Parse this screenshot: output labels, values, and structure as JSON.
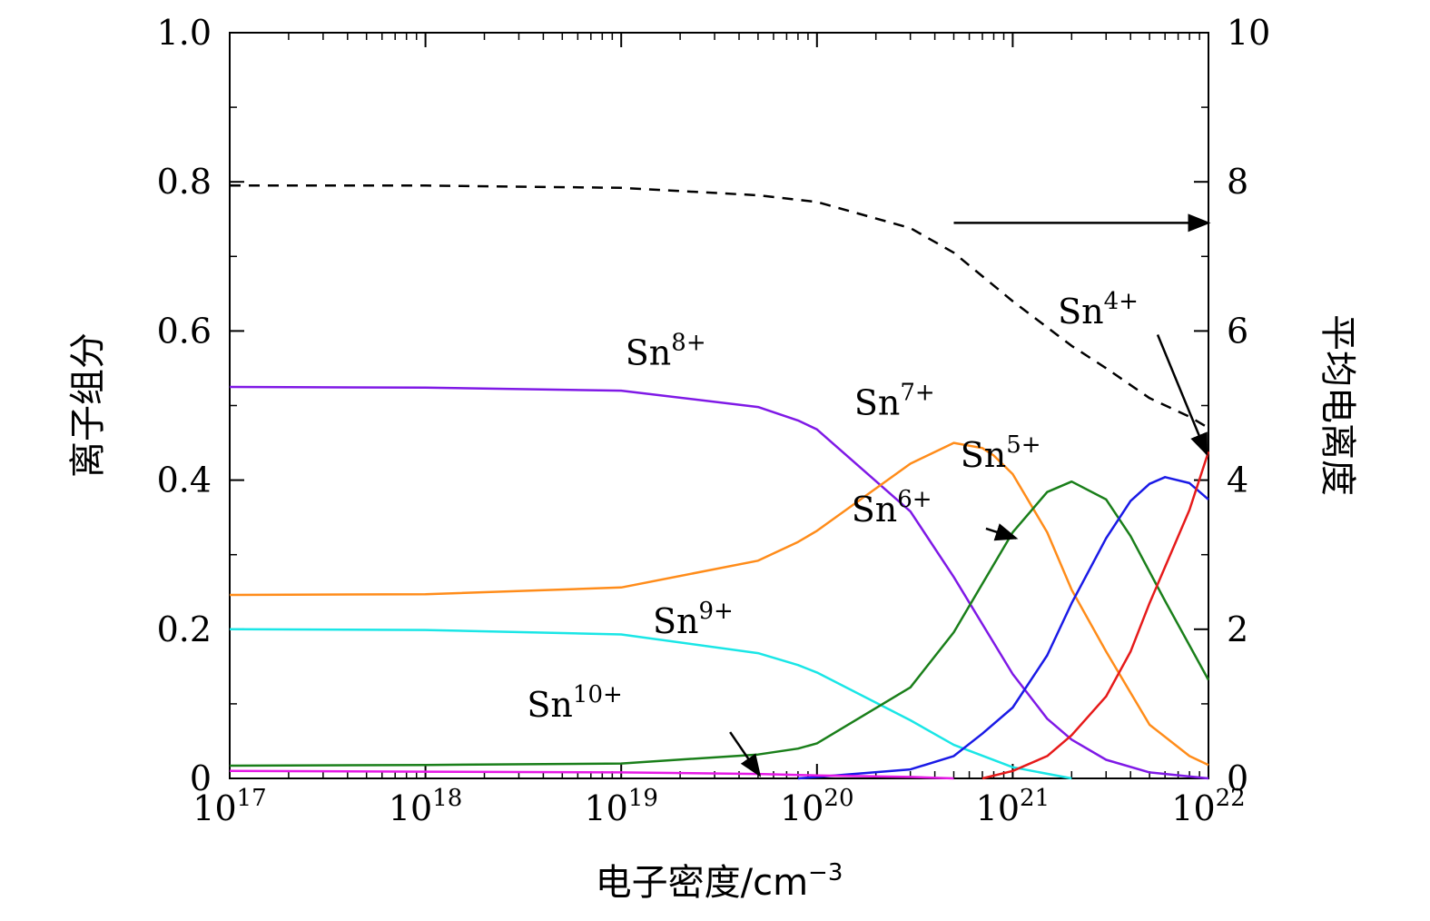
{
  "chart_data": {
    "type": "line",
    "title": "",
    "xlabel": "电子密度/cm",
    "xlabel_exponent": "−3",
    "ylabel_left": "离子组分",
    "ylabel_right": "平均电离度",
    "x_scale": "log",
    "xlim": [
      1e+17,
      1e+22
    ],
    "ylim_left": [
      0,
      1.0
    ],
    "ylim_right": [
      0,
      10
    ],
    "grid": false,
    "legend": "none (inline labels)",
    "x_ticks": [
      {
        "base": "10",
        "exp": "17"
      },
      {
        "base": "10",
        "exp": "18"
      },
      {
        "base": "10",
        "exp": "19"
      },
      {
        "base": "10",
        "exp": "20"
      },
      {
        "base": "10",
        "exp": "21"
      },
      {
        "base": "10",
        "exp": "22"
      }
    ],
    "y_ticks_left": [
      "0",
      "0.2",
      "0.4",
      "0.6",
      "0.8",
      "1.0"
    ],
    "y_ticks_right": [
      "0",
      "2",
      "4",
      "6",
      "8",
      "10"
    ],
    "series": [
      {
        "label_base": "Sn",
        "label_sup": "8+",
        "color": "#7f19e6",
        "axis": "left",
        "x": [
          1e+17,
          1e+18,
          1e+19,
          5e+19,
          8e+19,
          1e+20,
          3e+20,
          5e+20,
          1e+21,
          1.5e+21,
          2e+21,
          3e+21,
          5e+21,
          1e+22
        ],
        "y": [
          0.525,
          0.524,
          0.52,
          0.498,
          0.48,
          0.468,
          0.358,
          0.27,
          0.14,
          0.08,
          0.052,
          0.025,
          0.008,
          0.0
        ]
      },
      {
        "label_base": "Sn",
        "label_sup": "7+",
        "color": "#ff8c1a",
        "axis": "left",
        "x": [
          1e+17,
          1e+18,
          1e+19,
          5e+19,
          8e+19,
          1e+20,
          3e+20,
          5e+20,
          7e+20,
          8e+20,
          1e+21,
          1.5e+21,
          2e+21,
          3e+21,
          5e+21,
          8e+21,
          1e+22
        ],
        "y": [
          0.246,
          0.247,
          0.256,
          0.292,
          0.317,
          0.332,
          0.422,
          0.45,
          0.443,
          0.433,
          0.408,
          0.33,
          0.253,
          0.17,
          0.072,
          0.03,
          0.018
        ]
      },
      {
        "label_base": "Sn",
        "label_sup": "9+",
        "color": "#1ae6e6",
        "axis": "left",
        "x": [
          1e+17,
          1e+18,
          1e+19,
          5e+19,
          8e+19,
          1e+20,
          3e+20,
          5e+20,
          1e+21,
          2e+21
        ],
        "y": [
          0.2,
          0.199,
          0.193,
          0.168,
          0.152,
          0.142,
          0.078,
          0.045,
          0.015,
          0.0
        ]
      },
      {
        "label_base": "Sn",
        "label_sup": "6+",
        "color": "#1a7f1a",
        "axis": "left",
        "x": [
          1e+17,
          1e+18,
          1e+19,
          5e+19,
          8e+19,
          1e+20,
          3e+20,
          5e+20,
          1e+21,
          1.5e+21,
          2e+21,
          3e+21,
          4e+21,
          6e+21,
          1e+22
        ],
        "y": [
          0.017,
          0.018,
          0.02,
          0.032,
          0.04,
          0.047,
          0.122,
          0.196,
          0.33,
          0.384,
          0.398,
          0.374,
          0.325,
          0.238,
          0.132
        ]
      },
      {
        "label_base": "Sn",
        "label_sup": "5+",
        "color": "#1a1ae6",
        "axis": "left",
        "x": [
          8e+19,
          1e+20,
          3e+20,
          5e+20,
          7e+20,
          1e+21,
          1.5e+21,
          2e+21,
          3e+21,
          4e+21,
          5e+21,
          6e+21,
          8e+21,
          1e+22
        ],
        "y": [
          0.0,
          0.002,
          0.012,
          0.03,
          0.06,
          0.095,
          0.165,
          0.235,
          0.322,
          0.372,
          0.395,
          0.404,
          0.396,
          0.374
        ]
      },
      {
        "label_base": "Sn",
        "label_sup": "4+",
        "color": "#e61a1a",
        "axis": "left",
        "x": [
          7e+20,
          1e+21,
          1.5e+21,
          2e+21,
          3e+21,
          4e+21,
          5e+21,
          8e+21,
          1e+22
        ],
        "y": [
          0.0,
          0.01,
          0.03,
          0.058,
          0.11,
          0.17,
          0.235,
          0.36,
          0.438
        ]
      },
      {
        "label_base": "Sn",
        "label_sup": "10+",
        "color": "#e619e6",
        "axis": "left",
        "x": [
          1e+17,
          1e+18,
          1e+19,
          5e+19,
          1e+20,
          3e+20,
          5e+20
        ],
        "y": [
          0.01,
          0.009,
          0.008,
          0.006,
          0.004,
          0.002,
          0.0
        ]
      },
      {
        "label_base": "",
        "label_sup": "",
        "color": "#000000",
        "axis": "right",
        "dash": "dashed",
        "x": [
          1e+17,
          1e+18,
          1e+19,
          5e+19,
          1e+20,
          3e+20,
          5e+20,
          1e+21,
          2e+21,
          3e+21,
          5e+21,
          8e+21,
          1e+22
        ],
        "y": [
          7.95,
          7.95,
          7.92,
          7.82,
          7.73,
          7.38,
          7.05,
          6.4,
          5.8,
          5.5,
          5.1,
          4.85,
          4.7
        ]
      }
    ],
    "annotations": [
      {
        "type": "arrow",
        "from": [
          5e+20,
          7.45
        ],
        "to": [
          1e+22,
          7.45
        ],
        "axis": "right",
        "meaning": "dashed curve uses right axis"
      },
      {
        "type": "arrow",
        "from": [
          5.5e+21,
          0.595
        ],
        "to": [
          9.8e+21,
          0.435
        ],
        "axis": "left",
        "target": "4+"
      },
      {
        "type": "arrow",
        "from": [
          7.3e+20,
          0.335
        ],
        "to": [
          1.04e+21,
          0.322
        ],
        "axis": "left",
        "target": "6+"
      },
      {
        "type": "arrow",
        "from": [
          3.6e+19,
          0.062
        ],
        "to": [
          5.1e+19,
          0.004
        ],
        "axis": "left",
        "target": "10+"
      }
    ]
  }
}
